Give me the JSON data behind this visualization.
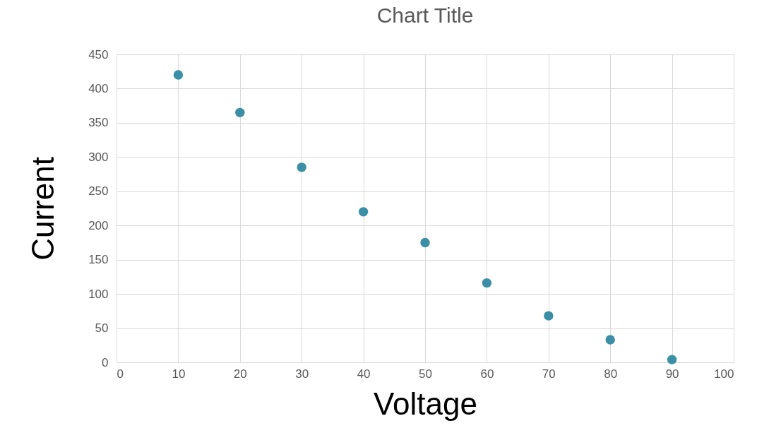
{
  "chart_data": {
    "type": "scatter",
    "title": "Chart Title",
    "xlabel": "Voltage",
    "ylabel": "Current",
    "x": [
      10,
      20,
      30,
      40,
      50,
      60,
      70,
      80,
      90
    ],
    "series": [
      {
        "color": "#3a8fa6",
        "values": [
          420,
          365,
          285,
          220,
          175,
          116,
          68,
          33,
          4
        ]
      }
    ],
    "xlim": [
      0,
      100
    ],
    "xticks": [
      0,
      10,
      20,
      30,
      40,
      50,
      60,
      70,
      80,
      90,
      100
    ],
    "ylim": [
      0,
      450
    ],
    "yticks": [
      0,
      50,
      100,
      150,
      200,
      250,
      300,
      350,
      400,
      450
    ],
    "grid": true,
    "marker": "circle"
  }
}
